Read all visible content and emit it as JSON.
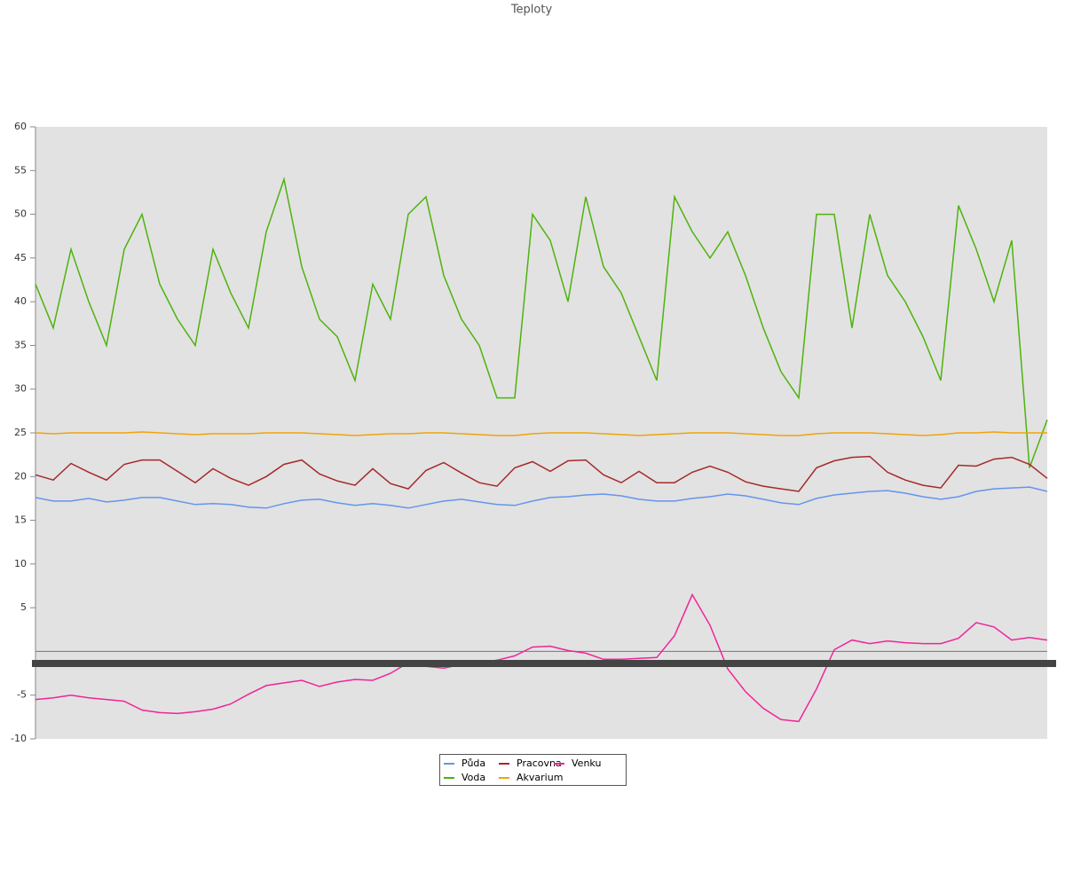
{
  "chart_data": {
    "type": "line",
    "title": "Teploty",
    "x": [
      0,
      1,
      2,
      3,
      4,
      5,
      6,
      7,
      8,
      9,
      10,
      11,
      12,
      13,
      14,
      15,
      16,
      17,
      18,
      19,
      20,
      21,
      22,
      23,
      24,
      25,
      26,
      27,
      28,
      29,
      30,
      31,
      32,
      33,
      34,
      35,
      36,
      37,
      38,
      39,
      40,
      41,
      42,
      43,
      44,
      45,
      46,
      47,
      48,
      49,
      50,
      51,
      52,
      53,
      54,
      55,
      56,
      57
    ],
    "xlim": [
      0,
      57
    ],
    "ylim": [
      -10,
      60
    ],
    "yticks": [
      -10,
      -5,
      5,
      10,
      15,
      20,
      25,
      30,
      35,
      40,
      45,
      50,
      55,
      60
    ],
    "grid": false,
    "legend": "bottom",
    "series": [
      {
        "name": "Půda",
        "color": "#6495ed",
        "values": [
          17.6,
          17.2,
          17.2,
          17.5,
          17.1,
          17.3,
          17.6,
          17.6,
          17.2,
          16.8,
          16.9,
          16.8,
          16.5,
          16.4,
          16.9,
          17.3,
          17.4,
          17.0,
          16.7,
          16.9,
          16.7,
          16.4,
          16.8,
          17.2,
          17.4,
          17.1,
          16.8,
          16.7,
          17.2,
          17.6,
          17.7,
          17.9,
          18.0,
          17.8,
          17.4,
          17.2,
          17.2,
          17.5,
          17.7,
          18.0,
          17.8,
          17.4,
          17.0,
          16.8,
          17.5,
          17.9,
          18.1,
          18.3,
          18.4,
          18.1,
          17.7,
          17.4,
          17.7,
          18.3,
          18.6,
          18.7,
          18.8,
          18.3
        ]
      },
      {
        "name": "Voda",
        "color": "#4db30d",
        "values": [
          42,
          37,
          46,
          40,
          35,
          46,
          50,
          42,
          38,
          35,
          46,
          41,
          37,
          48,
          54,
          44,
          38,
          36,
          31,
          42,
          38,
          50,
          52,
          43,
          38,
          35,
          29,
          29,
          50,
          47,
          40,
          52,
          44,
          41,
          36,
          31,
          52,
          48,
          45,
          48,
          43,
          37,
          32,
          29,
          50,
          50,
          37,
          50,
          43,
          40,
          36,
          31,
          51,
          46,
          40,
          47,
          21,
          26.5
        ]
      },
      {
        "name": "Pracovna",
        "color": "#a52a2a",
        "values": [
          20.2,
          19.6,
          21.5,
          20.5,
          19.6,
          21.4,
          21.9,
          21.9,
          20.6,
          19.3,
          20.9,
          19.8,
          19.0,
          20.0,
          21.4,
          21.9,
          20.3,
          19.5,
          19.0,
          20.9,
          19.2,
          18.6,
          20.7,
          21.6,
          20.4,
          19.3,
          18.9,
          21.0,
          21.7,
          20.6,
          21.8,
          21.9,
          20.2,
          19.3,
          20.6,
          19.3,
          19.3,
          20.5,
          21.2,
          20.5,
          19.4,
          18.9,
          18.6,
          18.3,
          21.0,
          21.8,
          22.2,
          22.3,
          20.5,
          19.6,
          19.0,
          18.7,
          21.3,
          21.2,
          22.0,
          22.2,
          21.4,
          19.8
        ]
      },
      {
        "name": "Akvarium",
        "color": "#f0a30a",
        "values": [
          25.0,
          24.9,
          25.0,
          25.0,
          25.0,
          25.0,
          25.1,
          25.0,
          24.9,
          24.8,
          24.9,
          24.9,
          24.9,
          25.0,
          25.0,
          25.0,
          24.9,
          24.8,
          24.7,
          24.8,
          24.9,
          24.9,
          25.0,
          25.0,
          24.9,
          24.8,
          24.7,
          24.7,
          24.9,
          25.0,
          25.0,
          25.0,
          24.9,
          24.8,
          24.7,
          24.8,
          24.9,
          25.0,
          25.0,
          25.0,
          24.9,
          24.8,
          24.7,
          24.7,
          24.9,
          25.0,
          25.0,
          25.0,
          24.9,
          24.8,
          24.7,
          24.8,
          25.0,
          25.0,
          25.1,
          25.0,
          25.0,
          25.0
        ]
      },
      {
        "name": "Venku",
        "color": "#f0249a",
        "values": [
          -5.5,
          -5.3,
          -5.0,
          -5.3,
          -5.5,
          -5.7,
          -6.7,
          -7.0,
          -7.1,
          -6.9,
          -6.6,
          -6.0,
          -4.9,
          -3.9,
          -3.6,
          -3.3,
          -4.0,
          -3.5,
          -3.2,
          -3.3,
          -2.5,
          -1.3,
          -1.7,
          -1.9,
          -1.5,
          -1.3,
          -1.0,
          -0.5,
          0.5,
          0.6,
          0.1,
          -0.2,
          -0.9,
          -0.9,
          -0.8,
          -0.7,
          1.8,
          6.5,
          3.0,
          -2.0,
          -4.6,
          -6.5,
          -7.8,
          -8.0,
          -4.3,
          0.2,
          1.3,
          0.9,
          1.2,
          1.0,
          0.9,
          0.9,
          1.5,
          3.3,
          2.8,
          1.3,
          1.6,
          1.3
        ]
      }
    ]
  }
}
